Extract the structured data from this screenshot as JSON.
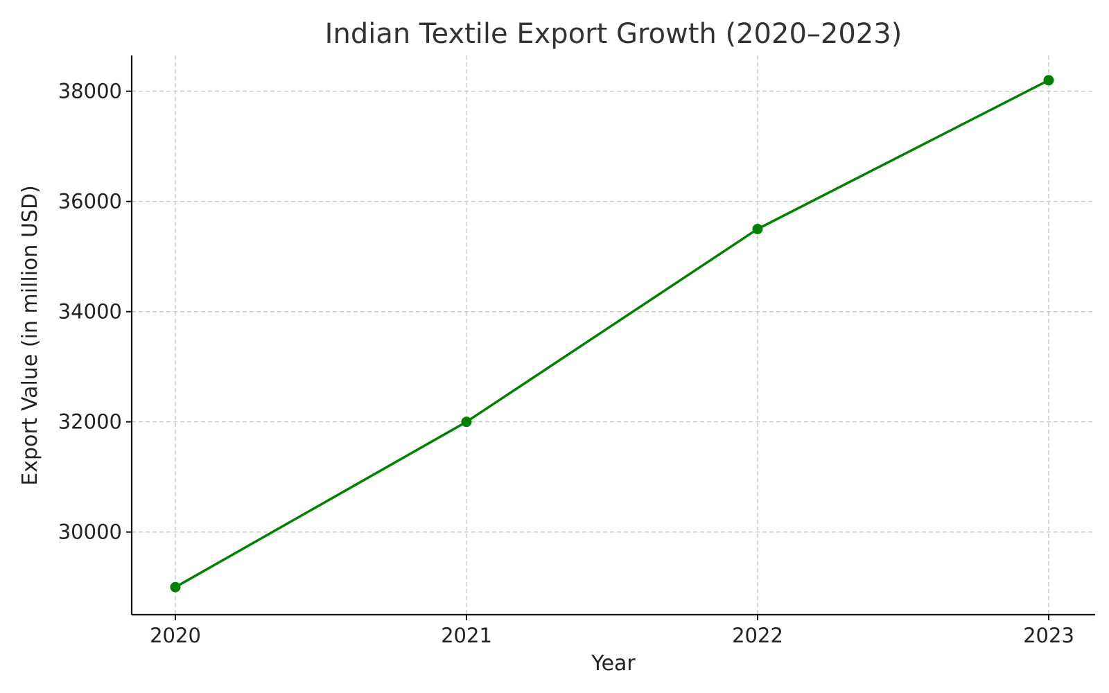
{
  "chart_data": {
    "type": "line",
    "title": "Indian Textile Export Growth (2020–2023)",
    "xlabel": "Year",
    "ylabel": "Export Value (in million USD)",
    "categories": [
      "2020",
      "2021",
      "2022",
      "2023"
    ],
    "series": [
      {
        "values": [
          29000,
          32000,
          35500,
          38200
        ],
        "color": "#008000"
      }
    ],
    "y_ticks": [
      30000,
      32000,
      34000,
      36000,
      38000
    ],
    "ylim": [
      28500,
      38650
    ],
    "grid": true,
    "grid_style": "dashed"
  }
}
